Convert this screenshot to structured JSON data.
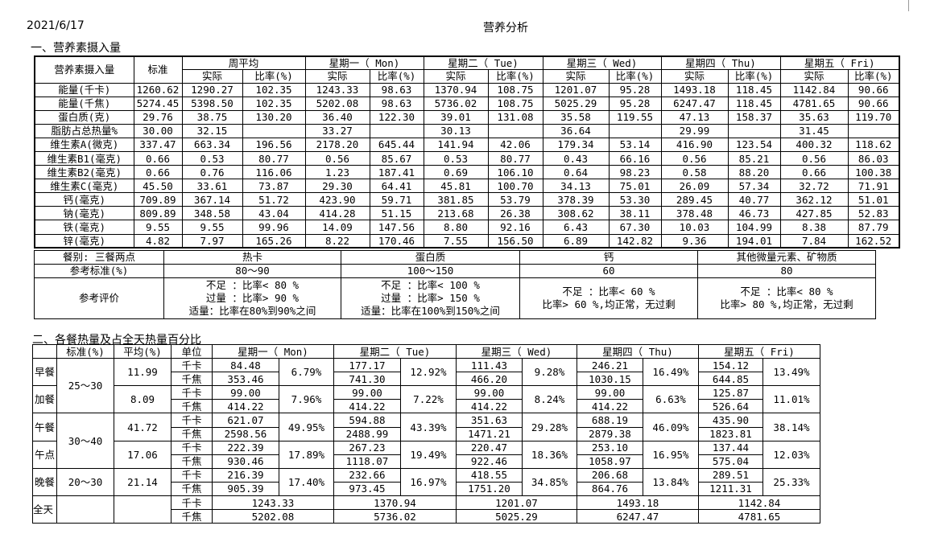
{
  "header": {
    "date": "2021/6/17",
    "title": "营养分析"
  },
  "section1": {
    "title": "一、营养素摄入量",
    "table": {
      "corner": "营养素摄入量",
      "standard": "标准",
      "groups": [
        "周平均",
        "星期一（ Mon)",
        "星期二（ Tue)",
        "星期三（ Wed)",
        "星期四（ Thu)",
        "星期五（ Fri)"
      ],
      "sub": [
        "实际",
        "比率(%)"
      ],
      "rows": [
        {
          "name": "能量(千卡)",
          "standard": "1260.62",
          "cells": [
            [
              "1290.27",
              "102.35"
            ],
            [
              "1243.33",
              "98.63"
            ],
            [
              "1370.94",
              "108.75"
            ],
            [
              "1201.07",
              "95.28"
            ],
            [
              "1493.18",
              "118.45"
            ],
            [
              "1142.84",
              "90.66"
            ]
          ]
        },
        {
          "name": "能量(千焦)",
          "standard": "5274.45",
          "cells": [
            [
              "5398.50",
              "102.35"
            ],
            [
              "5202.08",
              "98.63"
            ],
            [
              "5736.02",
              "108.75"
            ],
            [
              "5025.29",
              "95.28"
            ],
            [
              "6247.47",
              "118.45"
            ],
            [
              "4781.65",
              "90.66"
            ]
          ]
        },
        {
          "name": "蛋白质(克)",
          "standard": "29.76",
          "cells": [
            [
              "38.75",
              "130.20"
            ],
            [
              "36.40",
              "122.30"
            ],
            [
              "39.01",
              "131.08"
            ],
            [
              "35.58",
              "119.55"
            ],
            [
              "47.13",
              "158.37"
            ],
            [
              "35.63",
              "119.70"
            ]
          ]
        },
        {
          "name": "脂肪占总热量%",
          "standard": "30.00",
          "cells": [
            [
              "32.15",
              null
            ],
            [
              "33.27",
              null
            ],
            [
              "30.13",
              null
            ],
            [
              "36.64",
              null
            ],
            [
              "29.99",
              null
            ],
            [
              "31.45",
              null
            ]
          ]
        },
        {
          "name": "维生素A(微克)",
          "standard": "337.47",
          "cells": [
            [
              "663.34",
              "196.56"
            ],
            [
              "2178.20",
              "645.44"
            ],
            [
              "141.94",
              "42.06"
            ],
            [
              "179.34",
              "53.14"
            ],
            [
              "416.90",
              "123.54"
            ],
            [
              "400.32",
              "118.62"
            ]
          ]
        },
        {
          "name": "维生素B1(毫克)",
          "standard": "0.66",
          "cells": [
            [
              "0.53",
              "80.77"
            ],
            [
              "0.56",
              "85.67"
            ],
            [
              "0.53",
              "80.77"
            ],
            [
              "0.43",
              "66.16"
            ],
            [
              "0.56",
              "85.21"
            ],
            [
              "0.56",
              "86.03"
            ]
          ]
        },
        {
          "name": "维生素B2(毫克)",
          "standard": "0.66",
          "cells": [
            [
              "0.76",
              "116.06"
            ],
            [
              "1.23",
              "187.41"
            ],
            [
              "0.69",
              "106.10"
            ],
            [
              "0.64",
              "98.23"
            ],
            [
              "0.58",
              "88.20"
            ],
            [
              "0.66",
              "100.38"
            ]
          ]
        },
        {
          "name": "维生素C(毫克)",
          "standard": "45.50",
          "cells": [
            [
              "33.61",
              "73.87"
            ],
            [
              "29.30",
              "64.41"
            ],
            [
              "45.81",
              "100.70"
            ],
            [
              "34.13",
              "75.01"
            ],
            [
              "26.09",
              "57.34"
            ],
            [
              "32.72",
              "71.91"
            ]
          ]
        },
        {
          "name": "钙(毫克)",
          "standard": "709.89",
          "cells": [
            [
              "367.14",
              "51.72"
            ],
            [
              "423.90",
              "59.71"
            ],
            [
              "381.85",
              "53.79"
            ],
            [
              "378.39",
              "53.30"
            ],
            [
              "289.45",
              "40.77"
            ],
            [
              "362.12",
              "51.01"
            ]
          ]
        },
        {
          "name": "钠(毫克)",
          "standard": "809.89",
          "cells": [
            [
              "348.58",
              "43.04"
            ],
            [
              "414.28",
              "51.15"
            ],
            [
              "213.68",
              "26.38"
            ],
            [
              "308.62",
              "38.11"
            ],
            [
              "378.48",
              "46.73"
            ],
            [
              "427.85",
              "52.83"
            ]
          ]
        },
        {
          "name": "铁(毫克)",
          "standard": "9.55",
          "cells": [
            [
              "9.55",
              "99.96"
            ],
            [
              "14.09",
              "147.56"
            ],
            [
              "8.80",
              "92.16"
            ],
            [
              "6.43",
              "67.30"
            ],
            [
              "10.03",
              "104.99"
            ],
            [
              "8.38",
              "87.79"
            ]
          ]
        },
        {
          "name": "锌(毫克)",
          "standard": "4.82",
          "cells": [
            [
              "7.97",
              "165.26"
            ],
            [
              "8.22",
              "170.46"
            ],
            [
              "7.55",
              "156.50"
            ],
            [
              "6.89",
              "142.82"
            ],
            [
              "9.36",
              "194.01"
            ],
            [
              "7.84",
              "162.52"
            ]
          ]
        }
      ]
    }
  },
  "reference": {
    "headers": [
      "餐别: 三餐两点",
      "热卡",
      "蛋白质",
      "钙",
      "其他微量元素、矿物质"
    ],
    "standard_label": "参考标准(%)",
    "standards": [
      "80～90",
      "100～150",
      "60",
      "80"
    ],
    "evaluation_label": "参考评价",
    "evaluations": [
      [
        "不足 ：比率< 80 %",
        "过量 ：比率> 90 %",
        "适量：比率在80%到90%之间"
      ],
      [
        "不足 ：比率< 100 %",
        "过量 ：比率> 150 %",
        "适量：比率在100%到150%之间"
      ],
      [
        "不足 ：比率< 60 %",
        "比率> 60 %,均正常，无过剩"
      ],
      [
        "不足 ：比率< 80 %",
        "比率> 80 %,均正常，无过剩"
      ]
    ]
  },
  "section2": {
    "title": "二、各餐热量及占全天热量百分比",
    "table": {
      "headers": {
        "standard": "标准(%)",
        "average": "平均(%)",
        "unit": "单位",
        "days": [
          "星期一（ Mon)",
          "星期二（ Tue)",
          "星期三（ Wed)",
          "星期四（ Thu)",
          "星期五（ Fri)"
        ]
      },
      "units": [
        "千卡",
        "千焦"
      ],
      "meals": [
        {
          "name": "早餐",
          "standard": "25～30",
          "average": "11.99",
          "days": [
            [
              "84.48",
              "353.46",
              "6.79%"
            ],
            [
              "177.17",
              "741.30",
              "12.92%"
            ],
            [
              "111.43",
              "466.20",
              "9.28%"
            ],
            [
              "246.21",
              "1030.15",
              "16.49%"
            ],
            [
              "154.12",
              "644.85",
              "13.49%"
            ]
          ]
        },
        {
          "name": "加餐",
          "average": "8.09",
          "days": [
            [
              "99.00",
              "414.22",
              "7.96%"
            ],
            [
              "99.00",
              "414.22",
              "7.22%"
            ],
            [
              "99.00",
              "414.22",
              "8.24%"
            ],
            [
              "99.00",
              "414.22",
              "6.63%"
            ],
            [
              "125.87",
              "526.64",
              "11.01%"
            ]
          ]
        },
        {
          "name": "午餐",
          "standard": "30～40",
          "average": "41.72",
          "days": [
            [
              "621.07",
              "2598.56",
              "49.95%"
            ],
            [
              "594.88",
              "2488.99",
              "43.39%"
            ],
            [
              "351.63",
              "1471.21",
              "29.28%"
            ],
            [
              "688.19",
              "2879.38",
              "46.09%"
            ],
            [
              "435.90",
              "1823.81",
              "38.14%"
            ]
          ]
        },
        {
          "name": "午点",
          "average": "17.06",
          "days": [
            [
              "222.39",
              "930.46",
              "17.89%"
            ],
            [
              "267.23",
              "1118.07",
              "19.49%"
            ],
            [
              "220.47",
              "922.46",
              "18.36%"
            ],
            [
              "253.10",
              "1058.97",
              "16.95%"
            ],
            [
              "137.44",
              "575.04",
              "12.03%"
            ]
          ]
        },
        {
          "name": "晚餐",
          "standard": "20～30",
          "average": "21.14",
          "days": [
            [
              "216.39",
              "905.39",
              "17.40%"
            ],
            [
              "232.66",
              "973.45",
              "16.97%"
            ],
            [
              "418.55",
              "1751.20",
              "34.85%"
            ],
            [
              "206.68",
              "864.76",
              "13.84%"
            ],
            [
              "289.51",
              "1211.31",
              "25.33%"
            ]
          ]
        }
      ],
      "total": {
        "name": "全天",
        "kcal": [
          "1243.33",
          "1370.94",
          "1201.07",
          "1493.18",
          "1142.84"
        ],
        "kj": [
          "5202.08",
          "5736.02",
          "5025.29",
          "6247.47",
          "4781.65"
        ]
      }
    }
  }
}
